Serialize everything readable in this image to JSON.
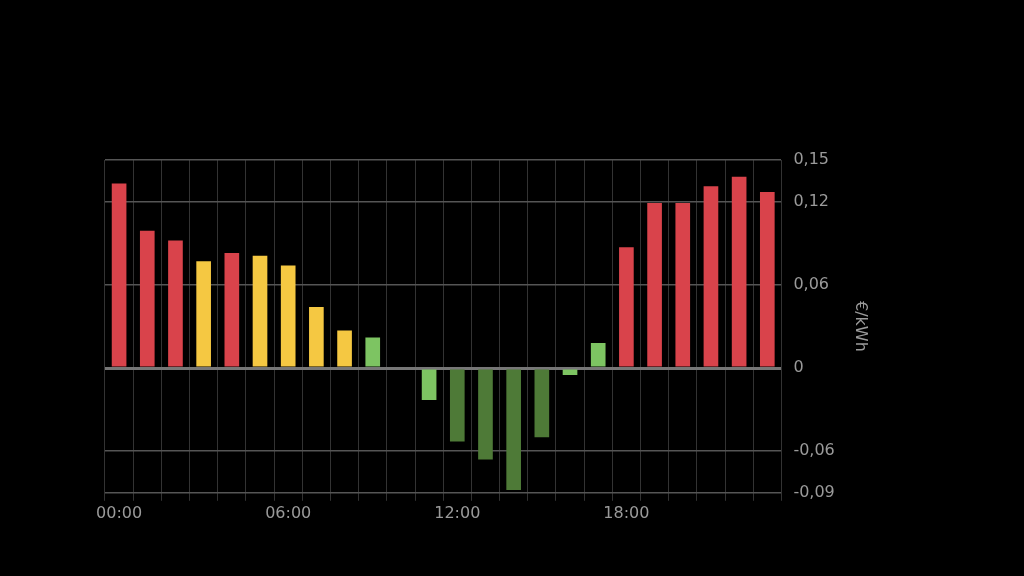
{
  "chart_data": {
    "type": "bar",
    "ylabel": "€/kWh",
    "categories": [
      "00:00",
      null,
      null,
      null,
      null,
      null,
      "06:00",
      null,
      null,
      null,
      null,
      null,
      "12:00",
      null,
      null,
      null,
      null,
      null,
      "18:00",
      null,
      null,
      null,
      null,
      null
    ],
    "values": [
      0.133,
      0.099,
      0.092,
      0.077,
      0.083,
      0.081,
      0.074,
      0.044,
      0.027,
      0.022,
      0,
      -0.023,
      -0.053,
      -0.066,
      -0.088,
      -0.05,
      -0.005,
      0.018,
      0.087,
      0.119,
      0.119,
      0.131,
      0.138,
      0.127
    ],
    "colors": [
      "#d9434b",
      "#d9434b",
      "#d9434b",
      "#f5c842",
      "#d9434b",
      "#f5c842",
      "#f5c842",
      "#f5c842",
      "#f5c842",
      "#7dc462",
      "#7dc462",
      "#7dc462",
      "#4e7a37",
      "#4e7a37",
      "#4e7a37",
      "#4e7a37",
      "#7dc462",
      "#7dc462",
      "#d9434b",
      "#d9434b",
      "#d9434b",
      "#d9434b",
      "#d9434b",
      "#d9434b"
    ],
    "ylim": [
      -0.09,
      0.15
    ],
    "yticks": [
      {
        "value": -0.09,
        "label": "-0,09"
      },
      {
        "value": -0.06,
        "label": "-0,06"
      },
      {
        "value": 0,
        "label": "0"
      },
      {
        "value": 0.06,
        "label": "0,06"
      },
      {
        "value": 0.12,
        "label": "0,12"
      },
      {
        "value": 0.15,
        "label": "0,15"
      }
    ],
    "grid": true,
    "legend": false
  }
}
